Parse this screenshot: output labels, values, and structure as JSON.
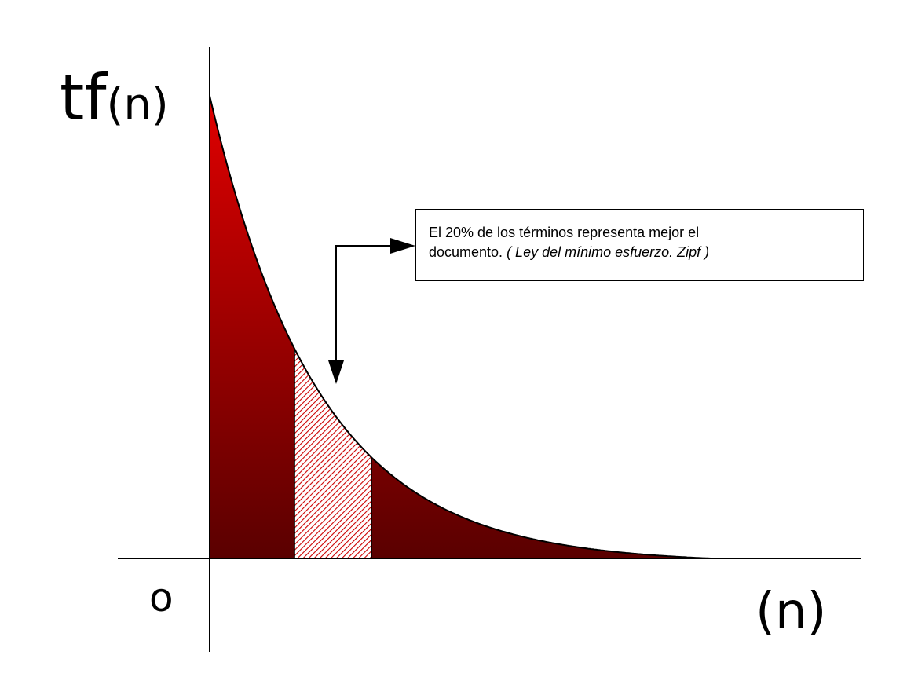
{
  "y_axis_label": {
    "main": "tf",
    "sub": "(n)"
  },
  "x_axis_label": "(n)",
  "origin_label": "o",
  "callout": {
    "line1": "El 20% de los términos representa mejor el",
    "line2_plain": "documento. ",
    "line2_italic": "( Ley del mínimo esfuerzo. Zipf )"
  },
  "colors": {
    "fill_top": "#e00000",
    "fill_bottom": "#5a0000",
    "highlight_hatch": "#cc0000",
    "highlight_bg": "#ffffff",
    "axis": "#000000"
  }
}
